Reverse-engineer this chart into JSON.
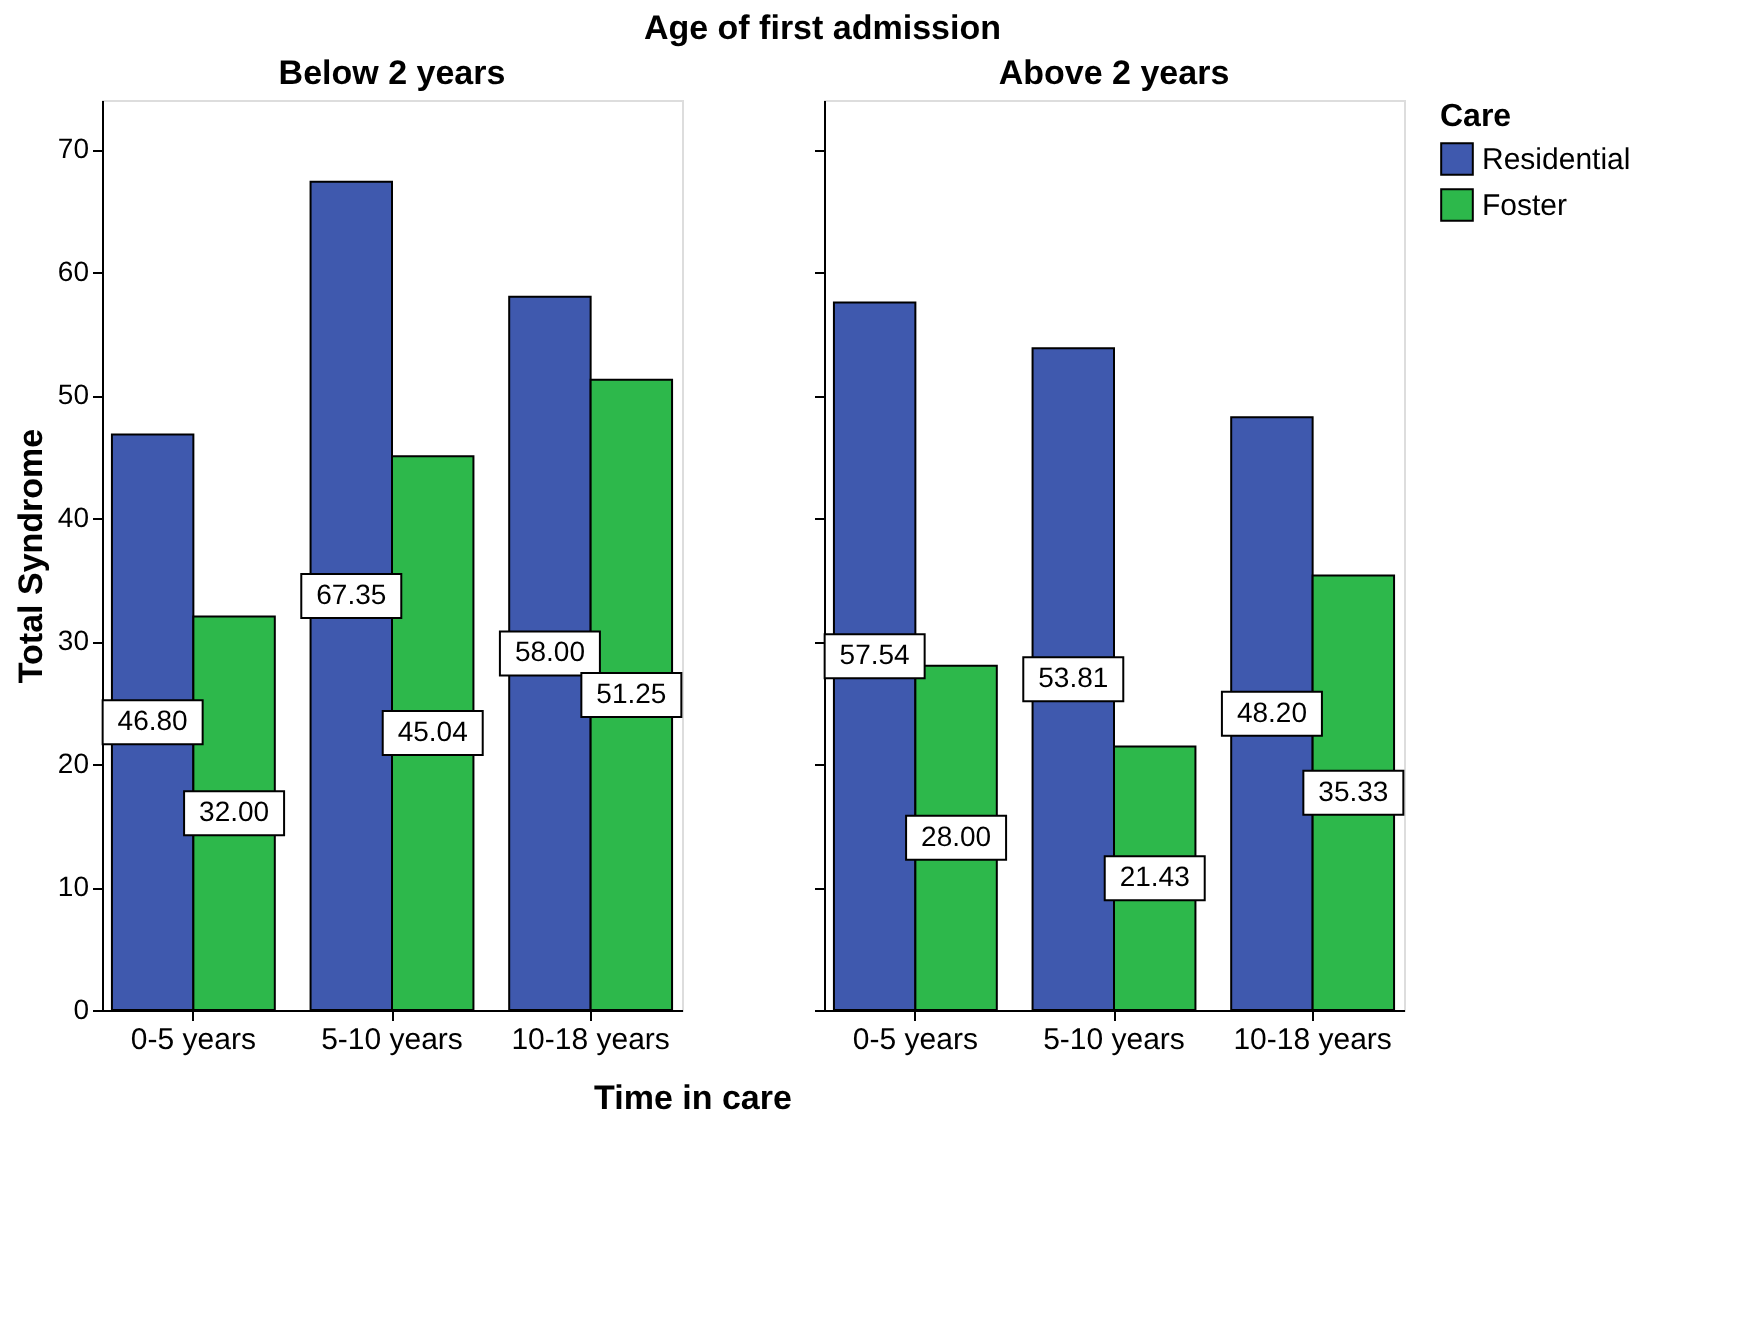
{
  "chart_data": [
    {
      "type": "bar",
      "title": "Below 2 years",
      "annotations": [
        "Age of first admission"
      ],
      "xlabel": "Time in care",
      "ylabel": "Total Syndrome",
      "categories": [
        "0-5 years",
        "5-10 years",
        "10-18 years"
      ],
      "series": [
        {
          "color": "#3f59ae",
          "values": [
            46.8,
            67.35,
            58.0
          ],
          "value_labels": [
            "46.80",
            "67.35",
            "58.00"
          ]
        },
        {
          "color": "#2db84b",
          "values": [
            32.0,
            45.04,
            51.25
          ],
          "value_labels": [
            "32.00",
            "45.04",
            "51.25"
          ]
        }
      ],
      "ylim": [
        0,
        74
      ],
      "yticks": [
        0,
        10,
        20,
        30,
        40,
        50,
        60,
        70
      ],
      "legend": false,
      "grid": false
    },
    {
      "type": "bar",
      "title": "Above 2 years",
      "legend_title": "Care",
      "categories": [
        "0-5 years",
        "5-10 years",
        "10-18 years"
      ],
      "series": [
        {
          "name": "Residential",
          "color": "#3f59ae",
          "values": [
            57.54,
            53.81,
            48.2
          ],
          "value_labels": [
            "57.54",
            "53.81",
            "48.20"
          ]
        },
        {
          "name": "Foster",
          "color": "#2db84b",
          "values": [
            28.0,
            21.43,
            35.33
          ],
          "value_labels": [
            "28.00",
            "21.43",
            "35.33"
          ]
        }
      ],
      "ylim": [
        0,
        74
      ],
      "yticks": [
        0,
        10,
        20,
        30,
        40,
        50,
        60,
        70
      ],
      "tick_labels": "x",
      "legend": "right",
      "grid": false
    }
  ]
}
